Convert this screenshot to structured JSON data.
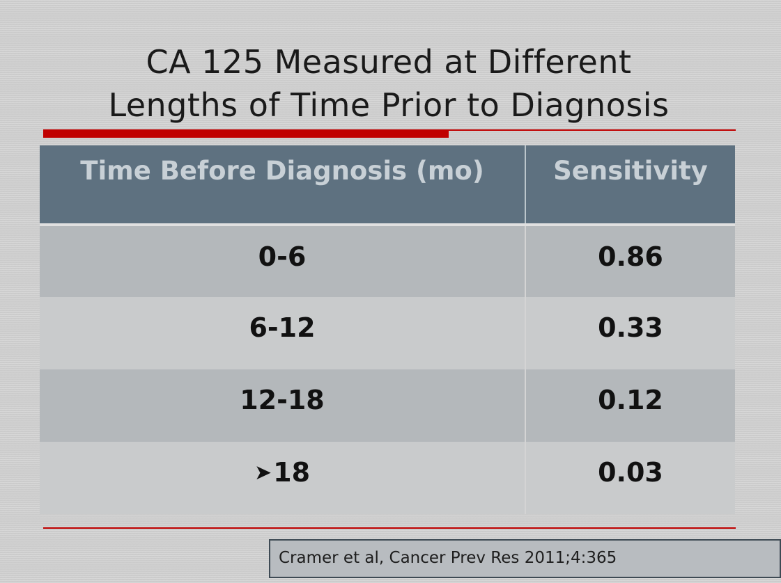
{
  "slide": {
    "title_line1": "CA 125 Measured at Different",
    "title_line2": "Lengths of Time Prior to Diagnosis",
    "accent_color": "#c00000",
    "header_color": "#5e7180"
  },
  "table": {
    "headers": [
      "Time Before Diagnosis (mo)",
      "Sensitivity"
    ],
    "rows": [
      {
        "time": "0-6",
        "sensitivity": "0.86"
      },
      {
        "time": "6-12",
        "sensitivity": "0.33"
      },
      {
        "time": "12-18",
        "sensitivity": "0.12"
      },
      {
        "time": "18",
        "time_prefix_icon": "arrowhead-right-icon",
        "sensitivity": "0.03"
      }
    ]
  },
  "citation": "Cramer et al, Cancer Prev Res 2011;4:365"
}
